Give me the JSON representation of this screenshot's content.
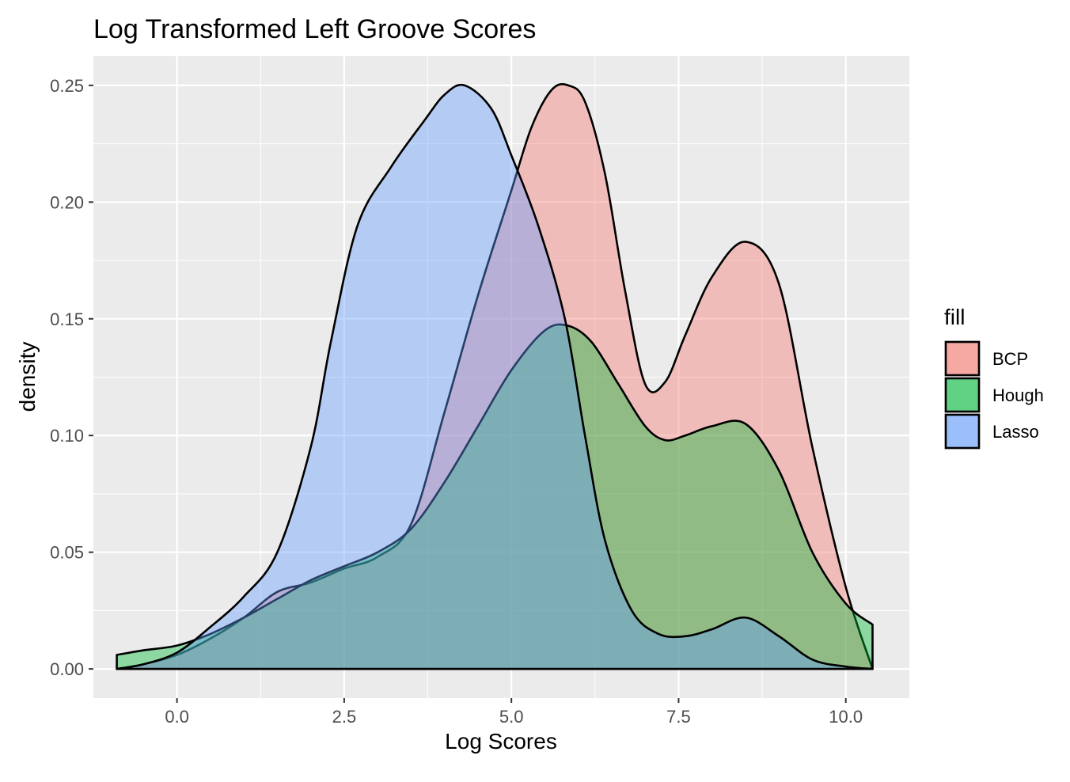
{
  "chart_data": {
    "type": "area",
    "subtype": "density",
    "title": "Log Transformed Left Groove Scores",
    "xlabel": "Log Scores",
    "ylabel": "density",
    "xlim": [
      -1.25,
      10.95
    ],
    "ylim": [
      -0.0125,
      0.2625
    ],
    "x_ticks": [
      0.0,
      2.5,
      5.0,
      7.5,
      10.0
    ],
    "x_tick_labels": [
      "0.0",
      "2.5",
      "5.0",
      "7.5",
      "10.0"
    ],
    "y_ticks": [
      0.0,
      0.05,
      0.1,
      0.15,
      0.2,
      0.25
    ],
    "y_tick_labels": [
      "0.00",
      "0.05",
      "0.10",
      "0.15",
      "0.20",
      "0.25"
    ],
    "grid": true,
    "background": "#ebebeb",
    "legend": {
      "title": "fill",
      "position": "right"
    },
    "series": [
      {
        "name": "BCP",
        "color": "#f8766d",
        "x": [
          -0.9,
          -0.5,
          0.0,
          0.5,
          1.0,
          1.5,
          2.0,
          2.5,
          3.0,
          3.5,
          4.0,
          4.5,
          5.0,
          5.3,
          5.6,
          5.85,
          6.1,
          6.4,
          6.7,
          7.0,
          7.3,
          7.6,
          8.0,
          8.5,
          9.0,
          9.5,
          10.0,
          10.4
        ],
        "values": [
          0.0,
          0.002,
          0.006,
          0.013,
          0.022,
          0.033,
          0.037,
          0.043,
          0.048,
          0.062,
          0.11,
          0.16,
          0.205,
          0.232,
          0.248,
          0.25,
          0.243,
          0.212,
          0.162,
          0.122,
          0.123,
          0.143,
          0.168,
          0.183,
          0.165,
          0.095,
          0.035,
          0.0
        ]
      },
      {
        "name": "Hough",
        "color": "#00ba38",
        "x": [
          -0.9,
          -0.5,
          0.0,
          0.5,
          1.0,
          1.5,
          2.0,
          2.5,
          3.0,
          3.5,
          4.0,
          4.5,
          5.0,
          5.5,
          5.85,
          6.2,
          6.6,
          7.0,
          7.3,
          7.6,
          8.0,
          8.5,
          9.0,
          9.5,
          10.0,
          10.4
        ],
        "values": [
          0.006,
          0.008,
          0.01,
          0.015,
          0.022,
          0.03,
          0.038,
          0.044,
          0.05,
          0.06,
          0.08,
          0.104,
          0.128,
          0.145,
          0.147,
          0.14,
          0.122,
          0.104,
          0.098,
          0.1,
          0.104,
          0.105,
          0.085,
          0.05,
          0.028,
          0.019
        ]
      },
      {
        "name": "Lasso",
        "color": "#619cff",
        "x": [
          -0.9,
          -0.5,
          0.0,
          0.5,
          1.0,
          1.5,
          2.0,
          2.3,
          2.7,
          3.2,
          3.7,
          4.0,
          4.3,
          4.7,
          5.0,
          5.4,
          5.8,
          6.1,
          6.4,
          6.8,
          7.2,
          7.6,
          8.0,
          8.5,
          9.0,
          9.5,
          10.0,
          10.4
        ],
        "values": [
          0.0,
          0.002,
          0.007,
          0.018,
          0.031,
          0.05,
          0.095,
          0.14,
          0.19,
          0.215,
          0.235,
          0.246,
          0.25,
          0.24,
          0.22,
          0.19,
          0.15,
          0.1,
          0.055,
          0.025,
          0.015,
          0.014,
          0.017,
          0.022,
          0.014,
          0.004,
          0.001,
          0.0
        ]
      }
    ]
  }
}
